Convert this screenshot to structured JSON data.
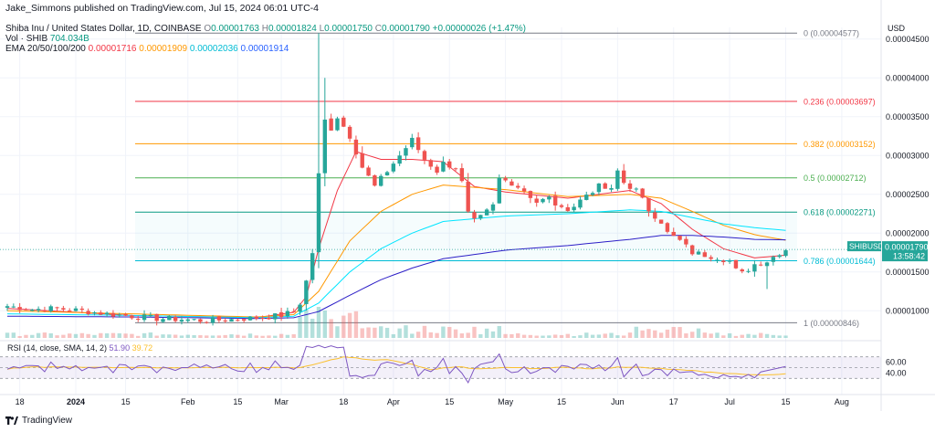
{
  "publisher": "Jake_Simmons published on TradingView.com, Jul 15, 2024 06:01 UTC-4",
  "legend": {
    "symbol": "Shiba Inu / United States Dollar, 1D, COINBASE",
    "o_label": "O",
    "o": "0.00001763",
    "h_label": "H",
    "h": "0.00001824",
    "l_label": "L",
    "l": "0.00001750",
    "c_label": "C",
    "c": "0.00001790",
    "change": "+0.00000026 (+1.47%)",
    "vol_label": "Vol · SHIB",
    "vol": "704.034B",
    "ema_label": "EMA 20/50/100/200",
    "ema20": "0.00001716",
    "ema50": "0.00001909",
    "ema100": "0.00002036",
    "ema200": "0.00001914"
  },
  "colors": {
    "up": "#26a69a",
    "down": "#ef5350",
    "ema20": "#f23645",
    "ema50": "#ff9800",
    "ema100": "#00e5ff",
    "ema200": "#2d1fc7",
    "rsi": "#7e57c2",
    "rsi_ma": "#fbc02d",
    "fib_cyan": "#00bcd4"
  },
  "footer_brand": "TradingView",
  "chart_data": {
    "type": "candlestick",
    "currency": "USD",
    "symbol_tag": "SHIBUSD",
    "last_price": "0.00001790",
    "countdown": "13:58:42",
    "ylim": [
      6.5e-06,
      4.65e-05
    ],
    "y_ticks": [
      "0.00004500",
      "0.00004000",
      "0.00003500",
      "0.00003000",
      "0.00002500",
      "0.00002000",
      "0.00001500",
      "0.00001000"
    ],
    "x_ticks": [
      "18",
      "2024",
      "15",
      "Feb",
      "15",
      "Mar",
      "18",
      "Apr",
      "15",
      "May",
      "15",
      "Jun",
      "17",
      "Jul",
      "15",
      "Aug"
    ],
    "fibonacci": [
      {
        "level": "0",
        "price": "0.00004577",
        "color": "#787b86"
      },
      {
        "level": "0.236",
        "price": "0.00003697",
        "color": "#f23645"
      },
      {
        "level": "0.382",
        "price": "0.00003152",
        "color": "#ff9800"
      },
      {
        "level": "0.5",
        "price": "0.00002712",
        "color": "#4caf50"
      },
      {
        "level": "0.618",
        "price": "0.00002271",
        "color": "#089981"
      },
      {
        "level": "0.786",
        "price": "0.00001644",
        "color": "#00bcd4"
      },
      {
        "level": "1",
        "price": "0.00000846",
        "color": "#787b86"
      }
    ],
    "close_anchors": [
      [
        0,
        10.6
      ],
      [
        4,
        10.2
      ],
      [
        8,
        10.3
      ],
      [
        12,
        10.0
      ],
      [
        16,
        9.6
      ],
      [
        20,
        9.3
      ],
      [
        24,
        9.0
      ],
      [
        28,
        8.9
      ],
      [
        32,
        8.7
      ],
      [
        36,
        8.9
      ],
      [
        40,
        9.1
      ],
      [
        44,
        9.4
      ],
      [
        46,
        9.9
      ],
      [
        47,
        11.0
      ],
      [
        48,
        13.8
      ],
      [
        49,
        17.5
      ],
      [
        50,
        27.5
      ],
      [
        51,
        34.5
      ],
      [
        52,
        33.5
      ],
      [
        53,
        35.0
      ],
      [
        55,
        32.5
      ],
      [
        57,
        28.5
      ],
      [
        59,
        26.0
      ],
      [
        61,
        28.0
      ],
      [
        63,
        30.0
      ],
      [
        65,
        32.0
      ],
      [
        67,
        29.5
      ],
      [
        69,
        28.0
      ],
      [
        70,
        29.0
      ],
      [
        72,
        28.5
      ],
      [
        73,
        26.5
      ],
      [
        74,
        22.5
      ],
      [
        75,
        21.5
      ],
      [
        76,
        22.0
      ],
      [
        78,
        23.5
      ],
      [
        79,
        27.0
      ],
      [
        81,
        26.5
      ],
      [
        83,
        25.5
      ],
      [
        85,
        24.0
      ],
      [
        87,
        24.5
      ],
      [
        89,
        23.0
      ],
      [
        91,
        23.5
      ],
      [
        93,
        25.0
      ],
      [
        95,
        26.0
      ],
      [
        97,
        25.5
      ],
      [
        98,
        28.0
      ],
      [
        99,
        26.5
      ],
      [
        101,
        25.5
      ],
      [
        103,
        23.0
      ],
      [
        105,
        21.5
      ],
      [
        106,
        20.0
      ],
      [
        108,
        19.0
      ],
      [
        110,
        17.5
      ],
      [
        112,
        17.2
      ],
      [
        114,
        16.9
      ],
      [
        116,
        16.4
      ],
      [
        117,
        15.2
      ],
      [
        118,
        14.8
      ],
      [
        120,
        16.0
      ],
      [
        122,
        16.4
      ],
      [
        124,
        17.5
      ],
      [
        125,
        17.9
      ]
    ],
    "ema_anchors": {
      "ema20": [
        [
          0,
          10.3
        ],
        [
          20,
          9.4
        ],
        [
          40,
          9.1
        ],
        [
          46,
          9.8
        ],
        [
          48,
          11.8
        ],
        [
          50,
          18.0
        ],
        [
          53,
          25.5
        ],
        [
          56,
          30.5
        ],
        [
          60,
          29.5
        ],
        [
          65,
          29.5
        ],
        [
          70,
          29.2
        ],
        [
          75,
          26.0
        ],
        [
          80,
          25.3
        ],
        [
          90,
          24.5
        ],
        [
          100,
          25.5
        ],
        [
          105,
          23.8
        ],
        [
          110,
          20.5
        ],
        [
          115,
          18.0
        ],
        [
          120,
          16.8
        ],
        [
          125,
          17.16
        ]
      ],
      "ema50": [
        [
          0,
          10.0
        ],
        [
          20,
          9.6
        ],
        [
          40,
          9.2
        ],
        [
          46,
          9.5
        ],
        [
          50,
          12.5
        ],
        [
          55,
          19.0
        ],
        [
          60,
          22.8
        ],
        [
          65,
          25.0
        ],
        [
          70,
          26.2
        ],
        [
          80,
          25.6
        ],
        [
          90,
          24.7
        ],
        [
          100,
          25.0
        ],
        [
          105,
          24.5
        ],
        [
          110,
          22.8
        ],
        [
          115,
          21.0
        ],
        [
          120,
          19.8
        ],
        [
          125,
          19.09
        ]
      ],
      "ema100": [
        [
          0,
          9.6
        ],
        [
          20,
          9.4
        ],
        [
          40,
          9.1
        ],
        [
          46,
          9.3
        ],
        [
          50,
          11.0
        ],
        [
          55,
          15.0
        ],
        [
          60,
          18.0
        ],
        [
          65,
          20.0
        ],
        [
          70,
          21.5
        ],
        [
          80,
          22.2
        ],
        [
          90,
          22.5
        ],
        [
          100,
          23.0
        ],
        [
          105,
          22.8
        ],
        [
          110,
          22.0
        ],
        [
          115,
          21.2
        ],
        [
          120,
          20.7
        ],
        [
          125,
          20.36
        ]
      ],
      "ema200": [
        [
          0,
          9.3
        ],
        [
          20,
          9.2
        ],
        [
          40,
          9.0
        ],
        [
          46,
          9.1
        ],
        [
          50,
          9.9
        ],
        [
          55,
          12.0
        ],
        [
          60,
          14.0
        ],
        [
          65,
          15.5
        ],
        [
          70,
          16.7
        ],
        [
          80,
          17.8
        ],
        [
          90,
          18.4
        ],
        [
          100,
          19.2
        ],
        [
          105,
          19.7
        ],
        [
          110,
          19.7
        ],
        [
          115,
          19.5
        ],
        [
          120,
          19.2
        ],
        [
          125,
          19.14
        ]
      ]
    },
    "rsi": {
      "label": "RSI (14, close, SMA, 14, 2)",
      "value": "51.90",
      "ma_value": "39.72",
      "levels": [
        "60.00",
        "40.00"
      ],
      "band_top": 70,
      "band_bottom": 30
    }
  }
}
